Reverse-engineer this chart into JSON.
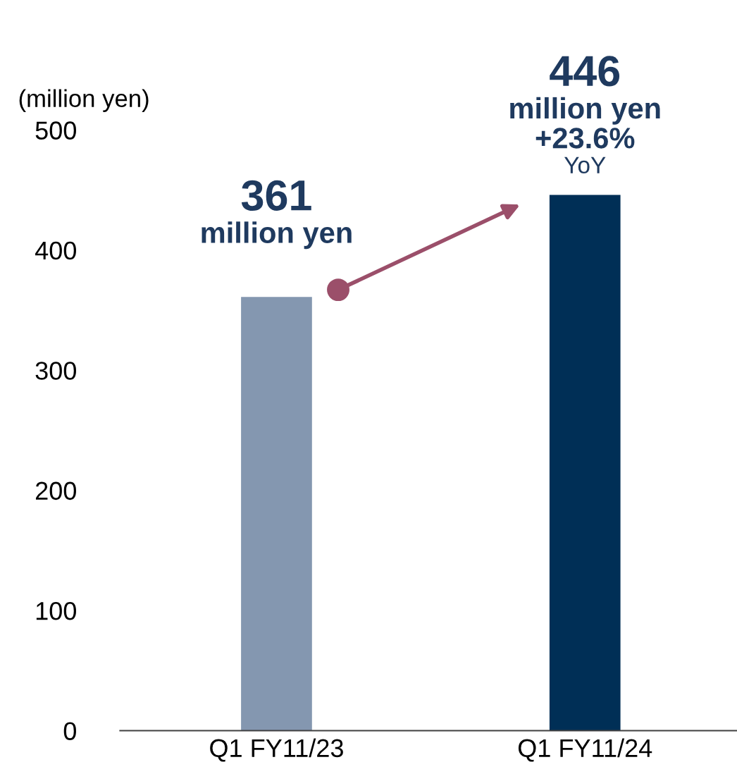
{
  "chart_data": {
    "type": "bar",
    "ylabel": "(million yen)",
    "categories": [
      "Q1 FY11/23",
      "Q1 FY11/24"
    ],
    "values": [
      361,
      446
    ],
    "colors": [
      "#8497b0",
      "#002f56"
    ],
    "ylim": [
      0,
      500
    ],
    "yticks": [
      0,
      100,
      200,
      300,
      400,
      500
    ],
    "grid": false,
    "data_labels": true,
    "annotations": [
      {
        "text": "million yen",
        "x": "Q1 FY11/23",
        "y": 361
      },
      {
        "text": "million yen",
        "x": "Q1 FY11/24",
        "y": 446
      },
      {
        "text": "+23.6%",
        "x": "Q1 FY11/24",
        "y": 446
      },
      {
        "text": "YoY",
        "x": "Q1 FY11/24",
        "y": 446
      }
    ]
  }
}
